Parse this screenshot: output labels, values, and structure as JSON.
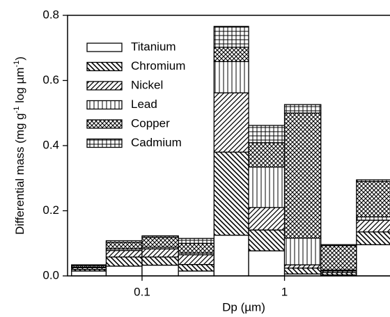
{
  "chart_data": {
    "type": "histogram",
    "xlabel": "Dp (µm)",
    "ylabel": [
      "Differential mass  (mg g",
      "-1",
      " log µm",
      "-1",
      ")"
    ],
    "bins": [
      0.032,
      0.056,
      0.1,
      0.18,
      0.32,
      0.56,
      1.0,
      1.8,
      3.2,
      5.6
    ],
    "xscale": "log",
    "xlim": [
      0.03,
      5.5
    ],
    "xticks": [
      0.1,
      1
    ],
    "ylim": [
      0,
      0.8
    ],
    "yticks": [
      {
        "value": 0,
        "label": "0.0"
      },
      0.2,
      0.4,
      0.6,
      0.8
    ],
    "legend": "upper left",
    "color": "#000000",
    "series": [
      {
        "name": "Titanium",
        "pattern": "none",
        "values": [
          0.015,
          0.03,
          0.033,
          0.015,
          0.125,
          0.077,
          0.006,
          0.003,
          0.096
        ]
      },
      {
        "name": "Chromium",
        "pattern": "backslash",
        "values": [
          0.005,
          0.028,
          0.025,
          0.02,
          0.255,
          0.064,
          0.018,
          0.007,
          0.039
        ]
      },
      {
        "name": "Nickel",
        "pattern": "slash",
        "values": [
          0.005,
          0.02,
          0.025,
          0.03,
          0.182,
          0.069,
          0.01,
          0.005,
          0.036
        ]
      },
      {
        "name": "Lead",
        "pattern": "vertical",
        "values": [
          0.002,
          0.005,
          0.005,
          0.005,
          0.096,
          0.124,
          0.082,
          0.003,
          0.01
        ]
      },
      {
        "name": "Copper",
        "pattern": "cross",
        "values": [
          0.005,
          0.02,
          0.03,
          0.03,
          0.044,
          0.075,
          0.384,
          0.075,
          0.109
        ]
      },
      {
        "name": "Cadmium",
        "pattern": "grid",
        "values": [
          0.002,
          0.005,
          0.005,
          0.015,
          0.064,
          0.053,
          0.026,
          0.003,
          0.005
        ]
      }
    ]
  }
}
